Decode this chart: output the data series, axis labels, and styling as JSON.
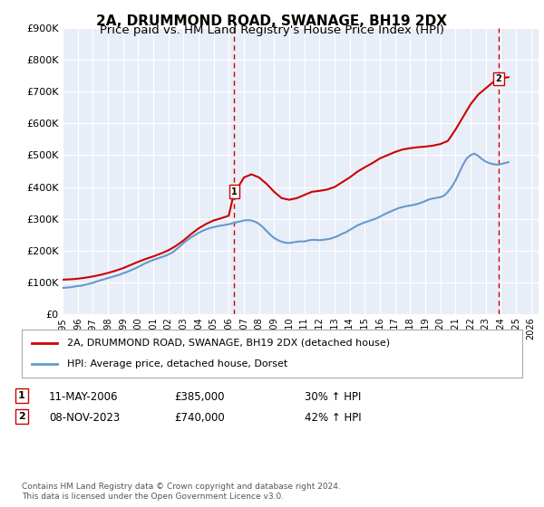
{
  "title": "2A, DRUMMOND ROAD, SWANAGE, BH19 2DX",
  "subtitle": "Price paid vs. HM Land Registry's House Price Index (HPI)",
  "title_fontsize": 11,
  "subtitle_fontsize": 9.5,
  "background_color": "#ffffff",
  "plot_bg_color": "#e8eef8",
  "grid_color": "#ffffff",
  "ylim": [
    0,
    900000
  ],
  "xlim_start": 1995.0,
  "xlim_end": 2026.5,
  "yticks": [
    0,
    100000,
    200000,
    300000,
    400000,
    500000,
    600000,
    700000,
    800000,
    900000
  ],
  "ytick_labels": [
    "£0",
    "£100K",
    "£200K",
    "£300K",
    "£400K",
    "£500K",
    "£600K",
    "£700K",
    "£800K",
    "£900K"
  ],
  "xtick_labels": [
    "1995",
    "1996",
    "1997",
    "1998",
    "1999",
    "2000",
    "2001",
    "2002",
    "2003",
    "2004",
    "2005",
    "2006",
    "2007",
    "2008",
    "2009",
    "2010",
    "2011",
    "2012",
    "2013",
    "2014",
    "2015",
    "2016",
    "2017",
    "2018",
    "2019",
    "2020",
    "2021",
    "2022",
    "2023",
    "2024",
    "2025",
    "2026"
  ],
  "legend_line1": "2A, DRUMMOND ROAD, SWANAGE, BH19 2DX (detached house)",
  "legend_line2": "HPI: Average price, detached house, Dorset",
  "line1_color": "#cc0000",
  "line2_color": "#6699cc",
  "marker1_date": 2006.36,
  "marker1_price": 385000,
  "marker1_label": "1",
  "marker2_date": 2023.86,
  "marker2_price": 740000,
  "marker2_label": "2",
  "transaction1_date": "11-MAY-2006",
  "transaction1_price": "£385,000",
  "transaction1_hpi": "30% ↑ HPI",
  "transaction2_date": "08-NOV-2023",
  "transaction2_price": "£740,000",
  "transaction2_hpi": "42% ↑ HPI",
  "footer": "Contains HM Land Registry data © Crown copyright and database right 2024.\nThis data is licensed under the Open Government Licence v3.0.",
  "hpi_line_x": [
    1995.0,
    1995.25,
    1995.5,
    1995.75,
    1996.0,
    1996.25,
    1996.5,
    1996.75,
    1997.0,
    1997.25,
    1997.5,
    1997.75,
    1998.0,
    1998.25,
    1998.5,
    1998.75,
    1999.0,
    1999.25,
    1999.5,
    1999.75,
    2000.0,
    2000.25,
    2000.5,
    2000.75,
    2001.0,
    2001.25,
    2001.5,
    2001.75,
    2002.0,
    2002.25,
    2002.5,
    2002.75,
    2003.0,
    2003.25,
    2003.5,
    2003.75,
    2004.0,
    2004.25,
    2004.5,
    2004.75,
    2005.0,
    2005.25,
    2005.5,
    2005.75,
    2006.0,
    2006.25,
    2006.5,
    2006.75,
    2007.0,
    2007.25,
    2007.5,
    2007.75,
    2008.0,
    2008.25,
    2008.5,
    2008.75,
    2009.0,
    2009.25,
    2009.5,
    2009.75,
    2010.0,
    2010.25,
    2010.5,
    2010.75,
    2011.0,
    2011.25,
    2011.5,
    2011.75,
    2012.0,
    2012.25,
    2012.5,
    2012.75,
    2013.0,
    2013.25,
    2013.5,
    2013.75,
    2014.0,
    2014.25,
    2014.5,
    2014.75,
    2015.0,
    2015.25,
    2015.5,
    2015.75,
    2016.0,
    2016.25,
    2016.5,
    2016.75,
    2017.0,
    2017.25,
    2017.5,
    2017.75,
    2018.0,
    2018.25,
    2018.5,
    2018.75,
    2019.0,
    2019.25,
    2019.5,
    2019.75,
    2020.0,
    2020.25,
    2020.5,
    2020.75,
    2021.0,
    2021.25,
    2021.5,
    2021.75,
    2022.0,
    2022.25,
    2022.5,
    2022.75,
    2023.0,
    2023.25,
    2023.5,
    2023.75,
    2024.0,
    2024.25,
    2024.5
  ],
  "hpi_line_y": [
    83000,
    84000,
    85000,
    87000,
    89000,
    90000,
    93000,
    96000,
    99000,
    103000,
    107000,
    110000,
    114000,
    117000,
    121000,
    124000,
    129000,
    133000,
    138000,
    143000,
    149000,
    155000,
    161000,
    166000,
    171000,
    175000,
    179000,
    183000,
    188000,
    194000,
    203000,
    213000,
    224000,
    233000,
    242000,
    249000,
    256000,
    262000,
    267000,
    271000,
    274000,
    277000,
    279000,
    281000,
    283000,
    286000,
    289000,
    292000,
    295000,
    296000,
    295000,
    291000,
    284000,
    274000,
    262000,
    250000,
    240000,
    233000,
    228000,
    225000,
    224000,
    226000,
    228000,
    229000,
    229000,
    232000,
    234000,
    234000,
    233000,
    234000,
    236000,
    238000,
    242000,
    247000,
    253000,
    258000,
    265000,
    272000,
    279000,
    284000,
    289000,
    293000,
    297000,
    301000,
    307000,
    313000,
    319000,
    324000,
    329000,
    334000,
    337000,
    340000,
    342000,
    344000,
    347000,
    351000,
    356000,
    361000,
    364000,
    366000,
    368000,
    373000,
    385000,
    400000,
    420000,
    445000,
    470000,
    490000,
    500000,
    505000,
    498000,
    488000,
    480000,
    475000,
    472000,
    470000,
    472000,
    475000,
    478000
  ],
  "property_line_x": [
    1995.0,
    1995.5,
    1996.0,
    1996.5,
    1997.0,
    1997.5,
    1998.0,
    1998.5,
    1999.0,
    1999.5,
    2000.0,
    2000.5,
    2001.0,
    2001.5,
    2002.0,
    2002.5,
    2003.0,
    2003.5,
    2004.0,
    2004.5,
    2005.0,
    2005.5,
    2006.0,
    2006.36,
    2006.5,
    2007.0,
    2007.5,
    2008.0,
    2008.5,
    2009.0,
    2009.5,
    2010.0,
    2010.5,
    2011.0,
    2011.5,
    2012.0,
    2012.5,
    2013.0,
    2013.5,
    2014.0,
    2014.5,
    2015.0,
    2015.5,
    2016.0,
    2016.5,
    2017.0,
    2017.5,
    2018.0,
    2018.5,
    2019.0,
    2019.5,
    2020.0,
    2020.5,
    2021.0,
    2021.5,
    2022.0,
    2022.5,
    2023.0,
    2023.5,
    2023.86,
    2024.0,
    2024.5
  ],
  "property_line_y": [
    109000,
    110000,
    112000,
    115000,
    119000,
    124000,
    130000,
    137000,
    145000,
    155000,
    165000,
    174000,
    182000,
    191000,
    201000,
    215000,
    232000,
    252000,
    270000,
    284000,
    295000,
    302000,
    310000,
    385000,
    390000,
    430000,
    440000,
    430000,
    410000,
    385000,
    365000,
    360000,
    365000,
    375000,
    385000,
    388000,
    392000,
    400000,
    415000,
    430000,
    448000,
    462000,
    475000,
    490000,
    500000,
    510000,
    518000,
    522000,
    525000,
    527000,
    530000,
    535000,
    545000,
    580000,
    620000,
    660000,
    690000,
    710000,
    730000,
    740000,
    742000,
    745000
  ]
}
